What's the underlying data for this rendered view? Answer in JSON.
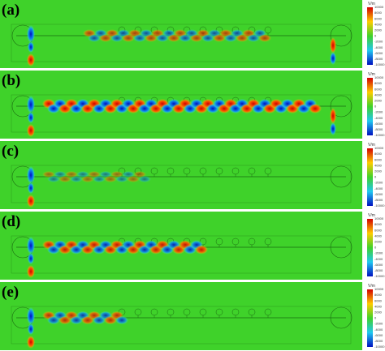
{
  "panels": [
    {
      "label": "(a)"
    },
    {
      "label": "(b)"
    },
    {
      "label": "(c)"
    },
    {
      "label": "(d)"
    },
    {
      "label": "(e)"
    }
  ],
  "colorbar": {
    "unit": "V/m",
    "ticks": [
      "10000",
      "8000",
      "6000",
      "4000",
      "2000",
      "0",
      "-2000",
      "-4000",
      "-6000",
      "-8000",
      "-10000"
    ]
  }
}
